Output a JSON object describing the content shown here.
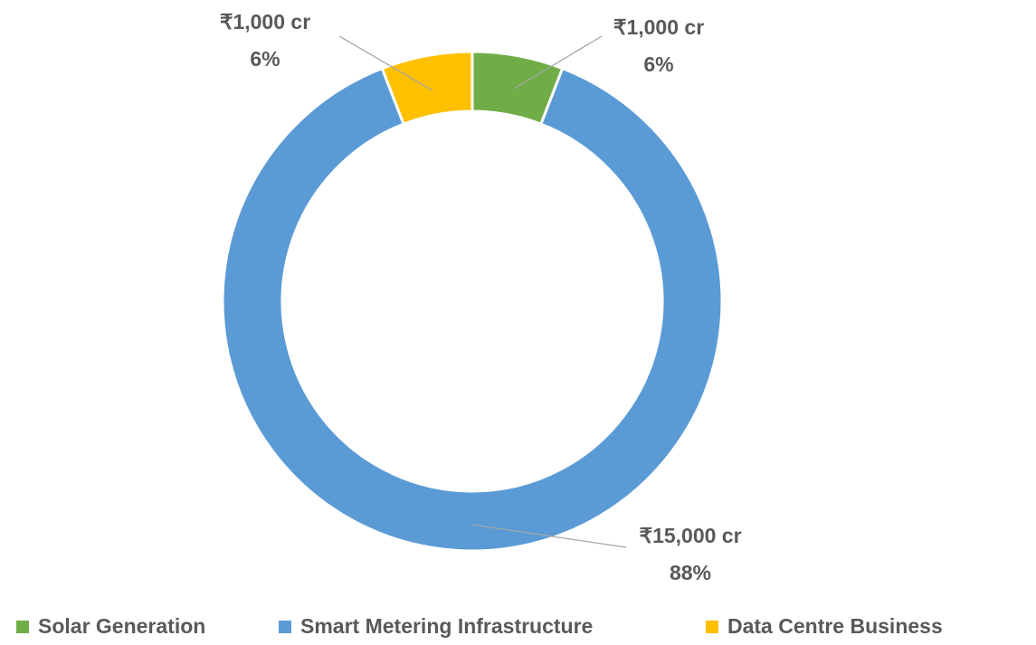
{
  "chart_data": {
    "type": "donut",
    "categories": [
      "Solar Generation",
      "Smart Metering Infrastructure",
      "Data Centre Business"
    ],
    "values": [
      1000,
      15000,
      1000
    ],
    "value_labels": [
      "₹1,000 cr",
      "₹15,000 cr",
      "₹1,000 cr"
    ],
    "percentages": [
      6,
      88,
      6
    ],
    "percentage_labels": [
      "6%",
      "88%",
      "6%"
    ],
    "colors": [
      "#70ad47",
      "#5b9bd5",
      "#ffc000"
    ],
    "legend": "bottom"
  }
}
